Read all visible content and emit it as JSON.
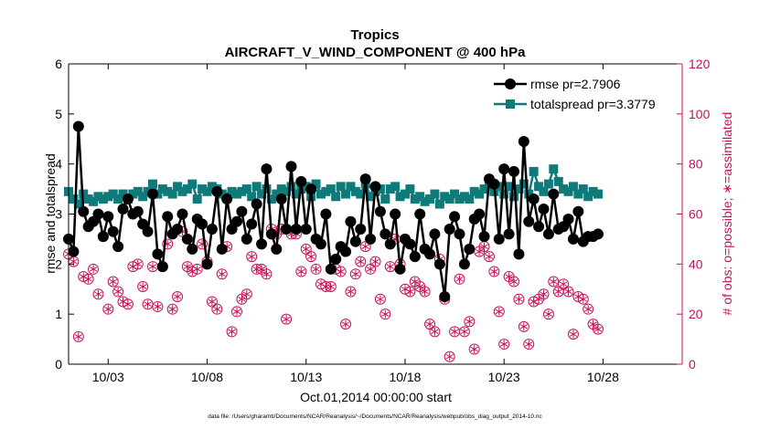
{
  "chart_data": {
    "type": "line",
    "title": "Tropics",
    "subtitle": "AIRCRAFT_V_WIND_COMPONENT @ 400 hPa",
    "xlabel": "Oct.01,2014 00:00:00 start",
    "ylabel": "rmse and totalspread",
    "y2label": "# of obs: o=possible; ∗=assimilated",
    "x_start_day": 1,
    "x_step_days": 0.25,
    "xlim": [
      1.0,
      32.0
    ],
    "ylim": [
      0,
      6
    ],
    "y2lim": [
      0,
      120
    ],
    "yticks": [
      0,
      1,
      2,
      3,
      4,
      5,
      6
    ],
    "y2ticks": [
      0,
      20,
      40,
      60,
      80,
      100,
      120
    ],
    "xticks": [
      3,
      8,
      13,
      18,
      23,
      28
    ],
    "xtick_labels": [
      "10/03",
      "10/08",
      "10/13",
      "10/18",
      "10/23",
      "10/28"
    ],
    "legend_position": "top-right",
    "colors": {
      "rmse": "#000000",
      "spread": "#0f7a7a",
      "obs": "#c8105a"
    },
    "series": [
      {
        "name": "rmse pr=2.7906",
        "axis": "left",
        "values": [
          2.5,
          2.25,
          4.75,
          3.05,
          2.75,
          2.85,
          3.0,
          2.55,
          2.95,
          2.65,
          2.35,
          3.1,
          3.3,
          3.0,
          3.05,
          2.8,
          2.65,
          3.4,
          2.2,
          1.95,
          2.95,
          2.6,
          2.7,
          3.0,
          2.5,
          2.3,
          2.9,
          2.8,
          2.0,
          2.7,
          3.45,
          2.3,
          3.3,
          2.7,
          2.85,
          3.05,
          2.5,
          2.8,
          3.2,
          2.4,
          3.9,
          2.6,
          2.3,
          3.3,
          2.7,
          3.95,
          2.7,
          3.65,
          2.7,
          3.5,
          2.5,
          2.4,
          3.0,
          1.9,
          2.1,
          2.35,
          2.25,
          2.85,
          2.45,
          2.7,
          3.7,
          2.5,
          3.55,
          3.05,
          2.6,
          2.4,
          3.0,
          1.9,
          2.5,
          2.4,
          2.15,
          3.0,
          2.3,
          2.2,
          2.6,
          2.0,
          1.35,
          2.7,
          2.95,
          2.6,
          2.0,
          2.3,
          2.9,
          3.0,
          2.55,
          3.7,
          3.6,
          2.5,
          3.9,
          2.6,
          3.85,
          2.2,
          4.45,
          2.85,
          3.3,
          2.75,
          3.1,
          2.6,
          3.4,
          2.7,
          2.75,
          2.9,
          2.5,
          3.05,
          2.45,
          2.55,
          2.55,
          2.6
        ]
      },
      {
        "name": "totalspread pr=3.3779",
        "axis": "left",
        "values": [
          3.45,
          3.3,
          3.2,
          3.4,
          3.3,
          3.25,
          3.35,
          3.3,
          3.35,
          3.4,
          3.3,
          3.4,
          3.3,
          3.4,
          3.45,
          3.35,
          3.45,
          3.6,
          3.4,
          3.5,
          3.45,
          3.4,
          3.55,
          3.45,
          3.5,
          3.6,
          3.3,
          3.5,
          3.45,
          3.55,
          3.5,
          3.4,
          3.35,
          3.45,
          3.4,
          3.45,
          3.5,
          3.35,
          3.55,
          3.4,
          3.5,
          3.3,
          3.4,
          3.5,
          3.45,
          3.55,
          3.4,
          3.5,
          3.55,
          3.35,
          3.6,
          3.4,
          3.45,
          3.5,
          3.35,
          3.55,
          3.4,
          3.55,
          3.45,
          3.4,
          3.6,
          3.35,
          3.45,
          3.5,
          3.3,
          3.5,
          3.55,
          3.35,
          3.4,
          3.5,
          3.3,
          3.35,
          3.25,
          3.3,
          3.4,
          3.2,
          3.35,
          3.3,
          3.4,
          3.3,
          3.35,
          3.3,
          3.45,
          3.4,
          3.5,
          3.65,
          3.45,
          3.55,
          3.4,
          3.55,
          3.35,
          3.5,
          3.6,
          3.4,
          3.85,
          3.55,
          3.45,
          3.6,
          3.9,
          3.65,
          3.5,
          3.45,
          3.55,
          3.4,
          3.5,
          3.35,
          3.45,
          3.4
        ]
      },
      {
        "name": "obs possible",
        "axis": "right",
        "marker": "circle",
        "values": [
          44,
          41,
          11,
          35,
          34,
          38,
          28,
          51,
          22,
          33,
          29,
          25,
          24,
          39,
          40,
          31,
          24,
          39,
          23,
          39,
          48,
          22,
          27,
          53,
          39,
          37,
          38,
          48,
          41,
          25,
          22,
          36,
          47,
          13,
          21,
          26,
          28,
          43,
          38,
          38,
          36,
          54,
          52,
          54,
          18,
          52,
          52,
          37,
          46,
          43,
          38,
          32,
          31,
          31,
          38,
          37,
          16,
          29,
          36,
          41,
          47,
          38,
          41,
          26,
          20,
          39,
          50,
          40,
          30,
          29,
          33,
          31,
          29,
          16,
          13,
          42,
          26,
          3,
          13,
          34,
          13,
          17,
          6,
          45,
          47,
          43,
          37,
          21,
          8,
          35,
          33,
          26,
          15,
          8,
          25,
          26,
          28,
          20,
          33,
          29,
          32,
          29,
          12,
          27,
          26,
          22,
          16,
          14
        ]
      },
      {
        "name": "obs assimilated",
        "axis": "right",
        "marker": "star",
        "values": [
          44,
          41,
          11,
          35,
          34,
          38,
          28,
          51,
          22,
          33,
          29,
          25,
          24,
          39,
          40,
          31,
          24,
          39,
          23,
          39,
          48,
          22,
          27,
          53,
          39,
          37,
          38,
          48,
          41,
          25,
          22,
          36,
          47,
          13,
          21,
          26,
          28,
          43,
          38,
          38,
          36,
          54,
          52,
          54,
          18,
          52,
          52,
          37,
          46,
          43,
          38,
          32,
          31,
          31,
          38,
          37,
          16,
          29,
          36,
          41,
          47,
          38,
          41,
          26,
          20,
          39,
          50,
          40,
          30,
          29,
          33,
          31,
          29,
          16,
          13,
          42,
          26,
          3,
          13,
          34,
          13,
          17,
          6,
          45,
          47,
          43,
          37,
          21,
          8,
          35,
          33,
          26,
          15,
          8,
          25,
          26,
          28,
          20,
          33,
          29,
          32,
          29,
          12,
          27,
          26,
          22,
          16,
          14
        ]
      }
    ]
  },
  "footer": "data file: /Users/gharamti/Documents/NCAR/Reanalysis/~/Documents/NCAR/Reanalysis/webpub/obs_diag_output_2014-10.nc"
}
